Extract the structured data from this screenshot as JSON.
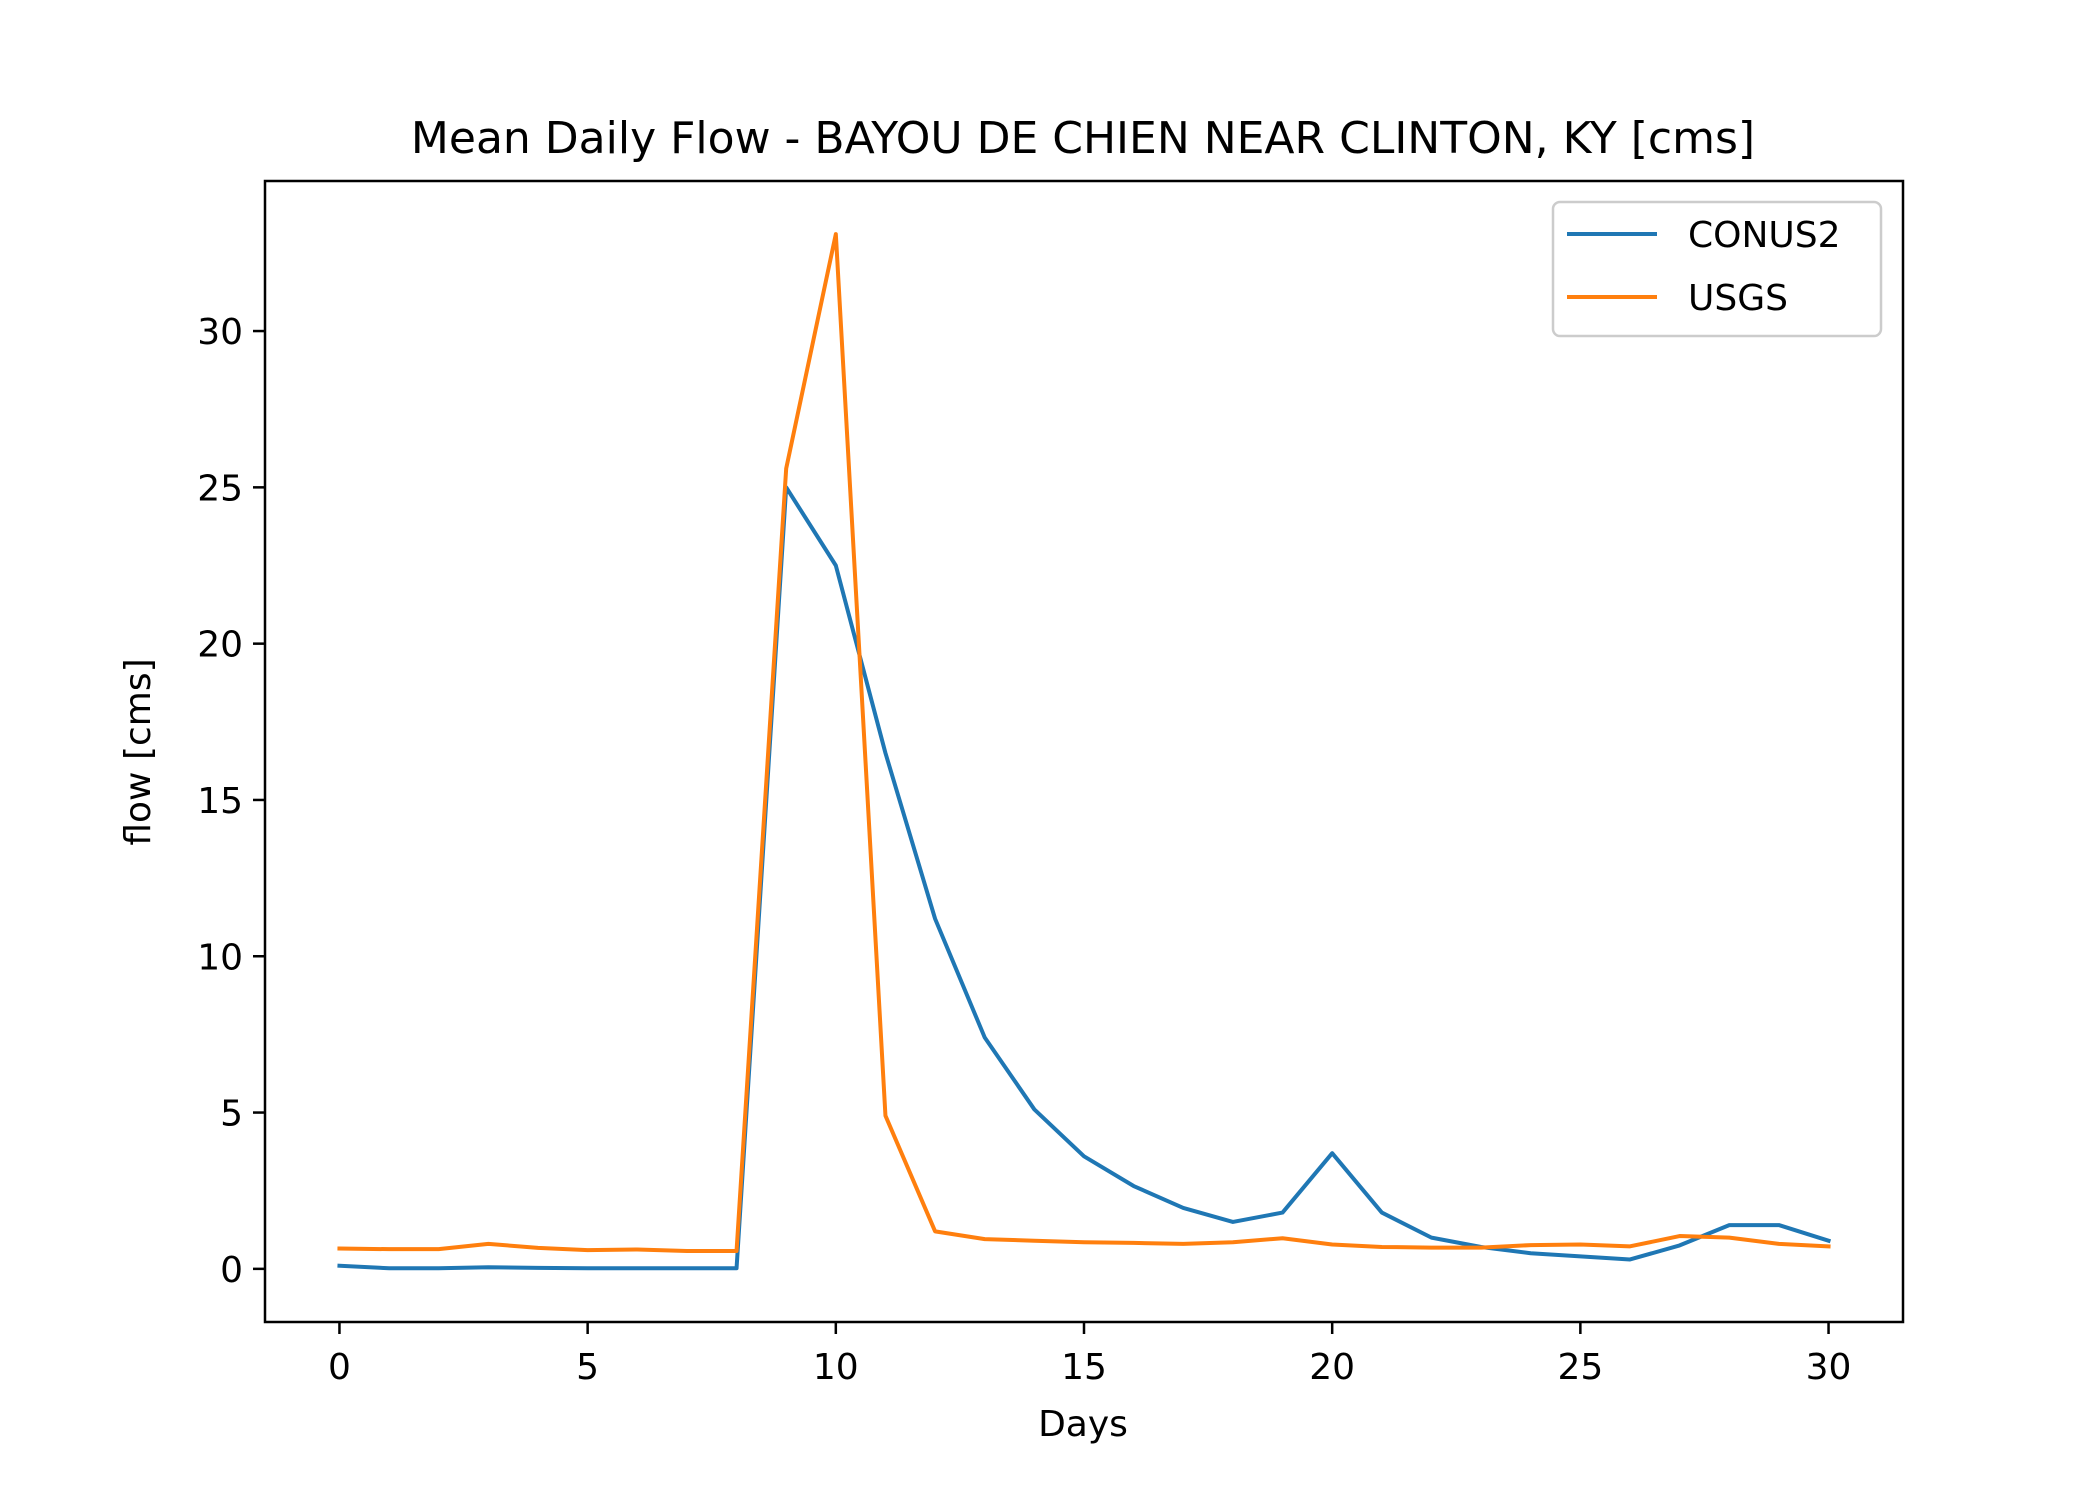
{
  "chart_data": {
    "type": "line",
    "title": "Mean Daily Flow - BAYOU DE CHIEN NEAR CLINTON, KY [cms]",
    "xlabel": "Days",
    "ylabel": "flow [cms]",
    "xlim": [
      -1.5,
      31.5
    ],
    "ylim": [
      -1.7,
      34.8
    ],
    "x_ticks": [
      0,
      5,
      10,
      15,
      20,
      25,
      30
    ],
    "y_ticks": [
      0,
      5,
      10,
      15,
      20,
      25,
      30
    ],
    "grid": false,
    "legend_position": "top-right",
    "x": [
      0,
      1,
      2,
      3,
      4,
      5,
      6,
      7,
      8,
      9,
      10,
      11,
      12,
      13,
      14,
      15,
      16,
      17,
      18,
      19,
      20,
      21,
      22,
      23,
      24,
      25,
      26,
      27,
      28,
      29,
      30
    ],
    "series": [
      {
        "name": "CONUS2",
        "color": "#1f77b4",
        "values": [
          0.1,
          0.02,
          0.02,
          0.05,
          0.03,
          0.02,
          0.02,
          0.02,
          0.02,
          25.0,
          22.5,
          16.5,
          11.2,
          7.4,
          5.1,
          3.6,
          2.65,
          1.95,
          1.5,
          1.8,
          3.7,
          1.8,
          1.0,
          0.7,
          0.5,
          0.4,
          0.3,
          0.75,
          1.4,
          1.4,
          0.9
        ]
      },
      {
        "name": "USGS",
        "color": "#ff7f0e",
        "values": [
          0.65,
          0.63,
          0.63,
          0.8,
          0.67,
          0.6,
          0.62,
          0.57,
          0.57,
          25.6,
          33.1,
          4.9,
          1.2,
          0.95,
          0.9,
          0.85,
          0.83,
          0.8,
          0.85,
          0.98,
          0.78,
          0.7,
          0.68,
          0.68,
          0.76,
          0.78,
          0.72,
          1.05,
          1.0,
          0.8,
          0.72
        ]
      }
    ]
  }
}
